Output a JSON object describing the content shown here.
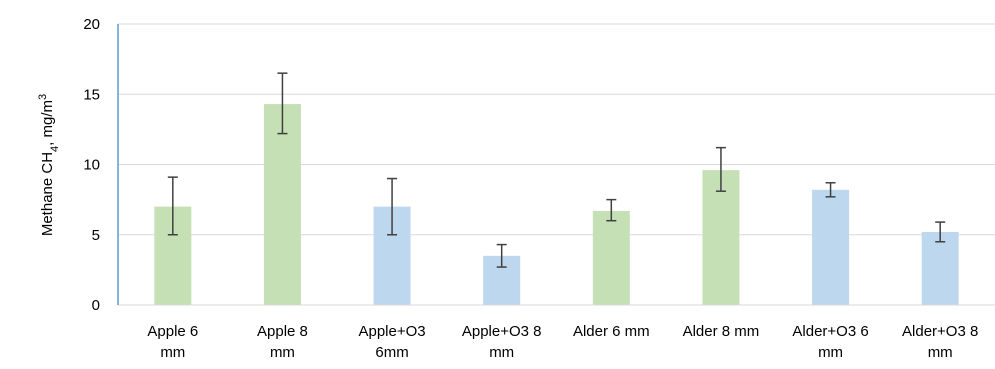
{
  "chart_data": {
    "type": "bar",
    "ylabel_main": "Methane CH",
    "ylabel_sub": "4",
    "ylabel_unit": ", mg/m",
    "ylabel_sup": "3",
    "ylim": [
      0,
      20
    ],
    "yticks": [
      0,
      5,
      10,
      15,
      20
    ],
    "grid": true,
    "legend": "none",
    "categories": [
      [
        "Apple 6",
        "mm"
      ],
      [
        "Apple 8",
        "mm"
      ],
      [
        "Apple+O3",
        "6mm"
      ],
      [
        "Apple+O3 8",
        "mm"
      ],
      [
        "Alder 6 mm"
      ],
      [
        "Alder 8 mm"
      ],
      [
        "Alder+O3 6",
        "mm"
      ],
      [
        "Alder+O3 8",
        "mm"
      ]
    ],
    "values": [
      7.0,
      14.3,
      7.0,
      3.5,
      6.7,
      9.6,
      8.2,
      5.2
    ],
    "error_low": [
      5.0,
      12.2,
      5.0,
      2.7,
      6.0,
      8.1,
      7.7,
      4.5
    ],
    "error_high": [
      9.1,
      16.5,
      9.0,
      4.3,
      7.5,
      11.2,
      8.7,
      5.9
    ],
    "bar_colors": [
      "#c5e0b4",
      "#c5e0b4",
      "#bdd7ee",
      "#bdd7ee",
      "#c5e0b4",
      "#c5e0b4",
      "#bdd7ee",
      "#bdd7ee"
    ],
    "colors": {
      "grid": "#d9d9d9",
      "axis": "#5b9bd5",
      "baseline": "#d9d9d9",
      "error_bar": "#404040"
    }
  }
}
